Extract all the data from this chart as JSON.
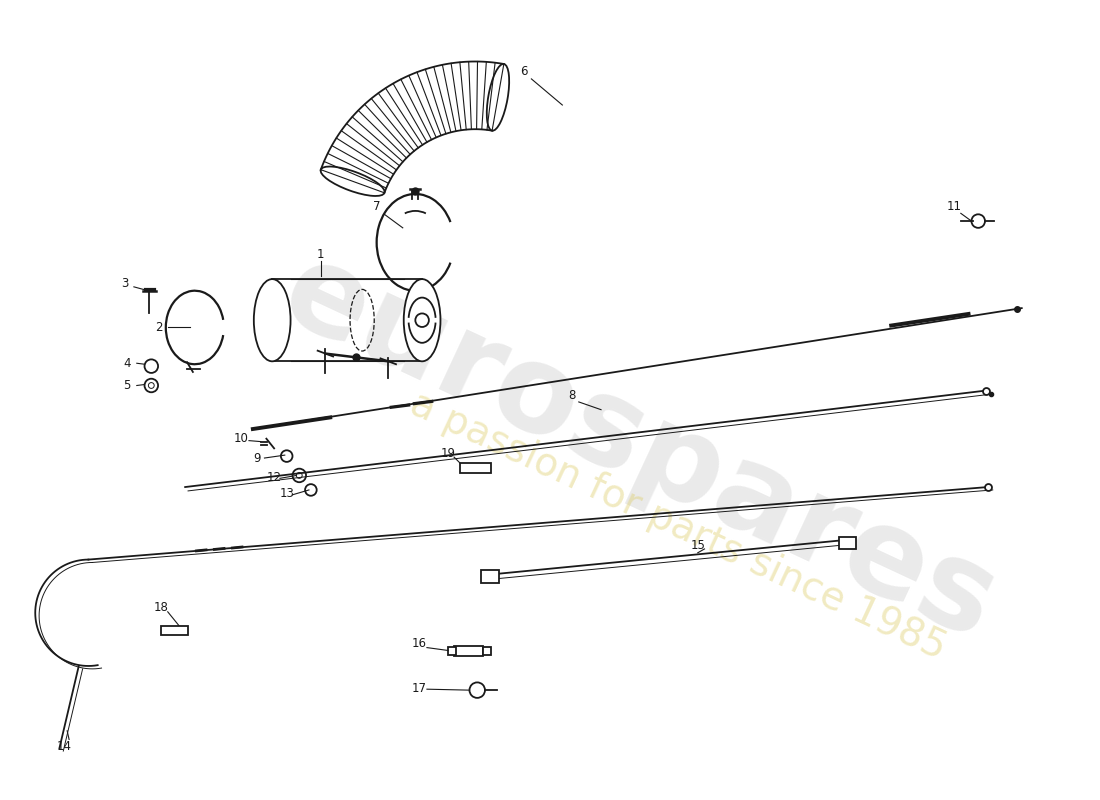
{
  "bg_color": "#ffffff",
  "black": "#1a1a1a",
  "lw": 1.3,
  "fig_w": 11.0,
  "fig_h": 8.0,
  "watermark1": "eurospares",
  "watermark2": "a passion for parts since 1985",
  "label_fontsize": 8.5
}
